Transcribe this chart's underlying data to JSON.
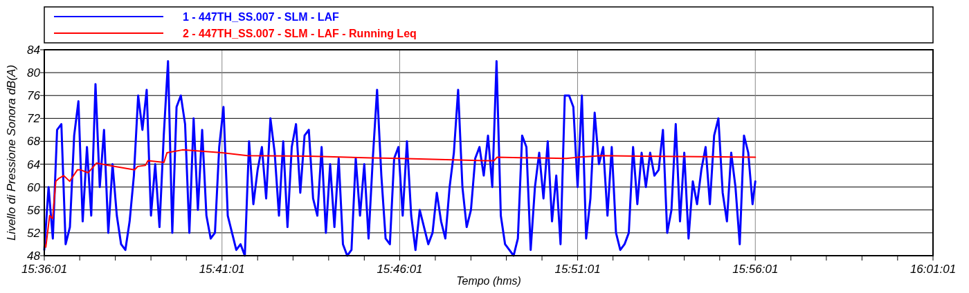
{
  "chart_data": {
    "type": "line",
    "xlabel": "Tempo (hms)",
    "ylabel": "Livello di Pressione Sonora dB(A)",
    "xlim": [
      15.6003,
      16.0169
    ],
    "ylim": [
      48,
      84
    ],
    "yticks": [
      48,
      52,
      56,
      60,
      64,
      68,
      72,
      76,
      80,
      84
    ],
    "xticks": [
      {
        "value": 15.6003,
        "label": "15:36:01"
      },
      {
        "value": 15.6169,
        "label": null
      },
      {
        "value": 15.6336,
        "label": null
      },
      {
        "value": 15.6503,
        "label": null
      },
      {
        "value": 15.6669,
        "label": null
      },
      {
        "value": 15.6836,
        "label": "15:41:01"
      },
      {
        "value": 15.7003,
        "label": null
      },
      {
        "value": 15.7169,
        "label": null
      },
      {
        "value": 15.7336,
        "label": null
      },
      {
        "value": 15.7503,
        "label": null
      },
      {
        "value": 15.7669,
        "label": "15:46:01"
      },
      {
        "value": 15.7836,
        "label": null
      },
      {
        "value": 15.8003,
        "label": null
      },
      {
        "value": 15.8169,
        "label": null
      },
      {
        "value": 15.8336,
        "label": null
      },
      {
        "value": 15.8503,
        "label": "15:51:01"
      },
      {
        "value": 15.8669,
        "label": null
      },
      {
        "value": 15.8836,
        "label": null
      },
      {
        "value": 15.9003,
        "label": null
      },
      {
        "value": 15.9169,
        "label": null
      },
      {
        "value": 15.9336,
        "label": "15:56:01"
      },
      {
        "value": 15.9503,
        "label": null
      },
      {
        "value": 15.9669,
        "label": null
      },
      {
        "value": 15.9836,
        "label": null
      },
      {
        "value": 16.0003,
        "label": null
      },
      {
        "value": 16.0169,
        "label": "16:01:01"
      }
    ],
    "grid": true,
    "legend": "top",
    "line_style": "solid",
    "series": [
      {
        "name": "1 - 447TH_SS.007 - SLM - LAF",
        "color": "#0000ff",
        "x": [
          15.6003,
          15.6023,
          15.6043,
          15.6063,
          15.6083,
          15.6103,
          15.6123,
          15.6143,
          15.6163,
          15.6183,
          15.6203,
          15.6223,
          15.6243,
          15.6263,
          15.6283,
          15.6303,
          15.6323,
          15.6343,
          15.6363,
          15.6383,
          15.6403,
          15.6423,
          15.6443,
          15.6463,
          15.6483,
          15.6503,
          15.6523,
          15.6543,
          15.6563,
          15.6583,
          15.6603,
          15.6623,
          15.6643,
          15.6663,
          15.6683,
          15.6703,
          15.6723,
          15.6743,
          15.6763,
          15.6783,
          15.6803,
          15.6823,
          15.6843,
          15.6863,
          15.6883,
          15.6903,
          15.6923,
          15.6943,
          15.6963,
          15.6983,
          15.7003,
          15.7023,
          15.7043,
          15.7063,
          15.7083,
          15.7103,
          15.7123,
          15.7143,
          15.7163,
          15.7183,
          15.7203,
          15.7223,
          15.7243,
          15.7263,
          15.7283,
          15.7303,
          15.7323,
          15.7343,
          15.7363,
          15.7383,
          15.7403,
          15.7423,
          15.7443,
          15.7463,
          15.7483,
          15.7503,
          15.7523,
          15.7543,
          15.7563,
          15.7583,
          15.7603,
          15.7623,
          15.7643,
          15.7663,
          15.7683,
          15.7703,
          15.7723,
          15.7743,
          15.7763,
          15.7783,
          15.7803,
          15.7823,
          15.7843,
          15.7863,
          15.7883,
          15.7903,
          15.7923,
          15.7943,
          15.7963,
          15.7983,
          15.8003,
          15.8023,
          15.8043,
          15.8063,
          15.8083,
          15.8103,
          15.8123,
          15.8143,
          15.8163,
          15.8183,
          15.8203,
          15.8223,
          15.8243,
          15.8263,
          15.8283,
          15.8303,
          15.8323,
          15.8343,
          15.8363,
          15.8383,
          15.8403,
          15.8423,
          15.8443,
          15.8463,
          15.8483,
          15.8503,
          15.8523,
          15.8543,
          15.8563,
          15.8583,
          15.8603,
          15.8623,
          15.8643,
          15.8663,
          15.8683,
          15.8703,
          15.8723,
          15.8743,
          15.8763,
          15.8783,
          15.8803,
          15.8823,
          15.8843,
          15.8863,
          15.8883,
          15.8903,
          15.8923,
          15.8943,
          15.8963,
          15.8983,
          15.9003,
          15.9023,
          15.9043,
          15.9063,
          15.9083,
          15.9103,
          15.9123,
          15.9143,
          15.9163,
          15.9183,
          15.9203,
          15.9223,
          15.9243,
          15.9263,
          15.9283,
          15.9303,
          15.9323,
          15.9336
        ],
        "values": [
          49,
          60,
          51,
          70,
          71,
          50,
          53,
          69,
          75,
          54,
          67,
          55,
          78,
          60,
          70,
          52,
          64,
          55,
          50,
          49,
          54,
          62,
          76,
          70,
          77,
          55,
          64,
          53,
          69,
          82,
          52,
          74,
          76,
          71,
          52,
          72,
          56,
          70,
          55,
          51,
          52,
          67,
          74,
          55,
          52,
          49,
          50,
          48,
          68,
          57,
          63,
          67,
          58,
          72,
          66,
          55,
          68,
          53,
          67,
          71,
          59,
          69,
          70,
          58,
          55,
          67,
          52,
          64,
          53,
          65,
          50,
          48,
          49,
          65,
          55,
          64,
          51,
          65,
          77,
          62,
          51,
          50,
          65,
          67,
          55,
          68,
          55,
          49,
          56,
          53,
          50,
          52,
          59,
          54,
          51,
          60,
          66,
          77,
          60,
          53,
          56,
          65,
          67,
          62,
          69,
          60,
          82,
          55,
          50,
          49,
          48,
          51,
          69,
          67,
          49,
          60,
          66,
          58,
          68,
          54,
          62,
          50,
          76,
          76,
          74,
          60,
          76,
          51,
          58,
          73,
          64,
          67,
          55,
          67,
          52,
          49,
          50,
          52,
          67,
          57,
          66,
          60,
          66,
          62,
          63,
          70,
          52,
          56,
          71,
          54,
          66,
          51,
          61,
          57,
          63,
          67,
          57,
          69,
          72,
          59,
          54,
          66,
          60,
          50,
          69,
          66,
          57,
          61
        ]
      },
      {
        "name": "2 - 447TH_SS.007 - SLM - LAF - Running Leq",
        "color": "#ff0000",
        "x": [
          15.6003,
          15.601,
          15.6028,
          15.6042,
          15.6057,
          15.6071,
          15.6094,
          15.6122,
          15.6158,
          15.6173,
          15.6209,
          15.6248,
          15.6303,
          15.6426,
          15.6441,
          15.6477,
          15.6489,
          15.6564,
          15.6578,
          15.6651,
          15.6836,
          15.6955,
          15.7245,
          15.7535,
          15.7669,
          15.8068,
          15.8111,
          15.8125,
          15.8451,
          15.8502,
          15.8617,
          15.8791,
          15.908,
          15.9336
        ],
        "values": [
          50,
          49.5,
          55,
          54.5,
          61,
          61.5,
          62,
          61,
          63,
          63,
          62.5,
          64.2,
          63.8,
          63,
          63.6,
          63.8,
          64.6,
          64.3,
          66,
          66.5,
          66,
          65.5,
          65.4,
          65.1,
          65,
          64.6,
          64.6,
          65.2,
          65,
          65.2,
          65.5,
          65.4,
          65.3,
          65.2
        ]
      }
    ]
  }
}
